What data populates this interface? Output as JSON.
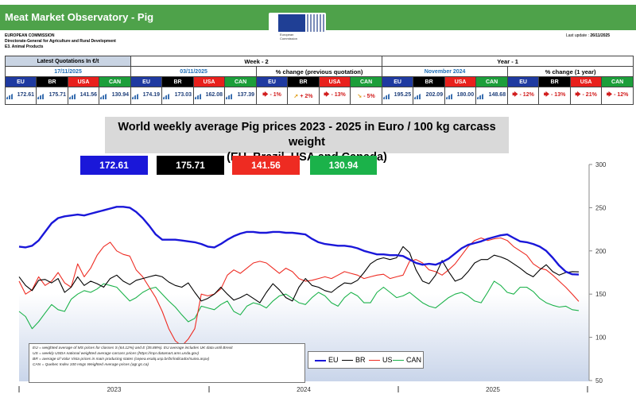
{
  "header": {
    "title": "Meat Market Observatory - Pig",
    "org_line1": "EUROPEAN COMMISSION",
    "org_line2": "Directorate-General for Agriculture and Rural Development",
    "org_line3": "E3. Animal Products",
    "logo_caption": "European Commission",
    "last_update_label": "Last update :",
    "last_update_value": "26/11/2025"
  },
  "colors": {
    "eu": "#1a17d9",
    "br": "#000000",
    "us": "#ee2b22",
    "can": "#1bb24a",
    "header_green": "#4ea24a"
  },
  "table": {
    "latest_label": "Latest Quotations In €/t",
    "week_label": "Week - 2",
    "year_label": "Year - 1",
    "latest_date": "17/11/2025",
    "week_date": "03/11/2025",
    "pct_prev_label": "% change (previous quotation)",
    "year_date": "November 2024",
    "pct_year_label": "% change (1 year)",
    "countries": [
      "EU",
      "BR",
      "USA",
      "CAN"
    ],
    "latest_values": [
      "172.61",
      "175.71",
      "141.56",
      "130.94"
    ],
    "week_values": [
      "174.19",
      "173.03",
      "162.08",
      "137.39"
    ],
    "pct_prev": [
      "- 1%",
      "+ 2%",
      "- 13%",
      "- 5%"
    ],
    "year_values": [
      "195.25",
      "202.09",
      "180.00",
      "148.68"
    ],
    "pct_year": [
      "- 12%",
      "- 13%",
      "- 21%",
      "- 12%"
    ]
  },
  "chart_data": {
    "type": "line",
    "title": "World weekly average Pig prices 2023 - 2025  in Euro / 100 kg carcass weight",
    "subtitle": "(EU, Brazil, USA and Canada)",
    "ylim": [
      50,
      300
    ],
    "yticks": [
      50,
      100,
      150,
      200,
      250,
      300
    ],
    "xlabels": [
      "2023",
      "2024",
      "2025"
    ],
    "grid": false,
    "legend_position": "bottom-center",
    "latest_boxes": [
      "172.61",
      "175.71",
      "141.56",
      "130.94"
    ],
    "notes": [
      "EU     = weighted average of MS prices for classes S (64.12%) and E (35.88%). EU average includes UK data  until Brexit",
      "US     = weekly USDA national weighted average carcass prices (https://mpr.datamart.ams.usda.gov)",
      "BR     = average of Valor Vista prices in main producing states (cepea.esalq.usp.br/br/indicador/suino.aspx)",
      "CAN = Quebec Index 100 Hogs Weighted Average prices (agr.gc.ca)"
    ],
    "series": [
      {
        "name": "EU",
        "color": "#1a17d9",
        "values": [
          205,
          204,
          206,
          212,
          222,
          232,
          238,
          240,
          241,
          242,
          241,
          243,
          245,
          247,
          249,
          251,
          251,
          250,
          245,
          238,
          229,
          219,
          213,
          213,
          213,
          212,
          211,
          210,
          208,
          205,
          204,
          208,
          213,
          217,
          220,
          222,
          222,
          221,
          221,
          222,
          222,
          221,
          221,
          220,
          219,
          214,
          210,
          208,
          207,
          206,
          206,
          205,
          203,
          200,
          198,
          196,
          196,
          195,
          195,
          194,
          190,
          186,
          184,
          185,
          184,
          187,
          191,
          197,
          203,
          207,
          209,
          211,
          214,
          216,
          218,
          219,
          215,
          211,
          210,
          208,
          205,
          200,
          192,
          183,
          176,
          173,
          172.61
        ]
      },
      {
        "name": "BR",
        "color": "#000000",
        "values": [
          170,
          160,
          154,
          166,
          167,
          163,
          168,
          152,
          158,
          170,
          160,
          165,
          162,
          158,
          168,
          172,
          165,
          161,
          166,
          168,
          170,
          172,
          170,
          164,
          160,
          158,
          163,
          152,
          142,
          145,
          150,
          158,
          150,
          143,
          146,
          150,
          145,
          140,
          152,
          162,
          155,
          146,
          142,
          158,
          168,
          160,
          158,
          154,
          152,
          158,
          163,
          162,
          166,
          175,
          185,
          190,
          192,
          190,
          192,
          205,
          198,
          178,
          165,
          162,
          172,
          189,
          176,
          165,
          168,
          176,
          186,
          190,
          190,
          195,
          193,
          190,
          185,
          180,
          174,
          170,
          178,
          184,
          176,
          172,
          175,
          176,
          175.71
        ]
      },
      {
        "name": "US",
        "color": "#ee2b22",
        "values": [
          165,
          150,
          155,
          170,
          160,
          165,
          175,
          163,
          158,
          185,
          170,
          180,
          195,
          205,
          210,
          200,
          196,
          194,
          178,
          170,
          158,
          146,
          130,
          110,
          96,
          90,
          98,
          110,
          150,
          148,
          150,
          156,
          172,
          178,
          174,
          180,
          186,
          188,
          186,
          180,
          174,
          180,
          176,
          168,
          165,
          166,
          168,
          170,
          168,
          172,
          176,
          174,
          172,
          168,
          170,
          172,
          173,
          168,
          170,
          172,
          188,
          190,
          186,
          178,
          176,
          172,
          178,
          185,
          195,
          205,
          212,
          215,
          212,
          214,
          215,
          212,
          205,
          200,
          195,
          185,
          180,
          178,
          172,
          165,
          158,
          150,
          141.56
        ]
      },
      {
        "name": "CAN",
        "color": "#1bb24a",
        "values": [
          130,
          124,
          110,
          118,
          128,
          138,
          132,
          130,
          144,
          150,
          154,
          152,
          156,
          162,
          160,
          158,
          150,
          142,
          146,
          152,
          156,
          158,
          150,
          142,
          135,
          126,
          118,
          122,
          136,
          134,
          132,
          138,
          142,
          130,
          126,
          136,
          140,
          138,
          134,
          142,
          148,
          150,
          145,
          140,
          138,
          146,
          152,
          148,
          140,
          136,
          146,
          152,
          148,
          140,
          140,
          152,
          158,
          152,
          146,
          148,
          152,
          146,
          140,
          136,
          134,
          140,
          146,
          150,
          152,
          148,
          142,
          140,
          152,
          165,
          160,
          152,
          150,
          158,
          158,
          153,
          145,
          140,
          137,
          135,
          136,
          132,
          130.94
        ]
      }
    ]
  },
  "legend": {
    "eu": "EU",
    "br": "BR",
    "us": "US",
    "can": "CAN"
  }
}
